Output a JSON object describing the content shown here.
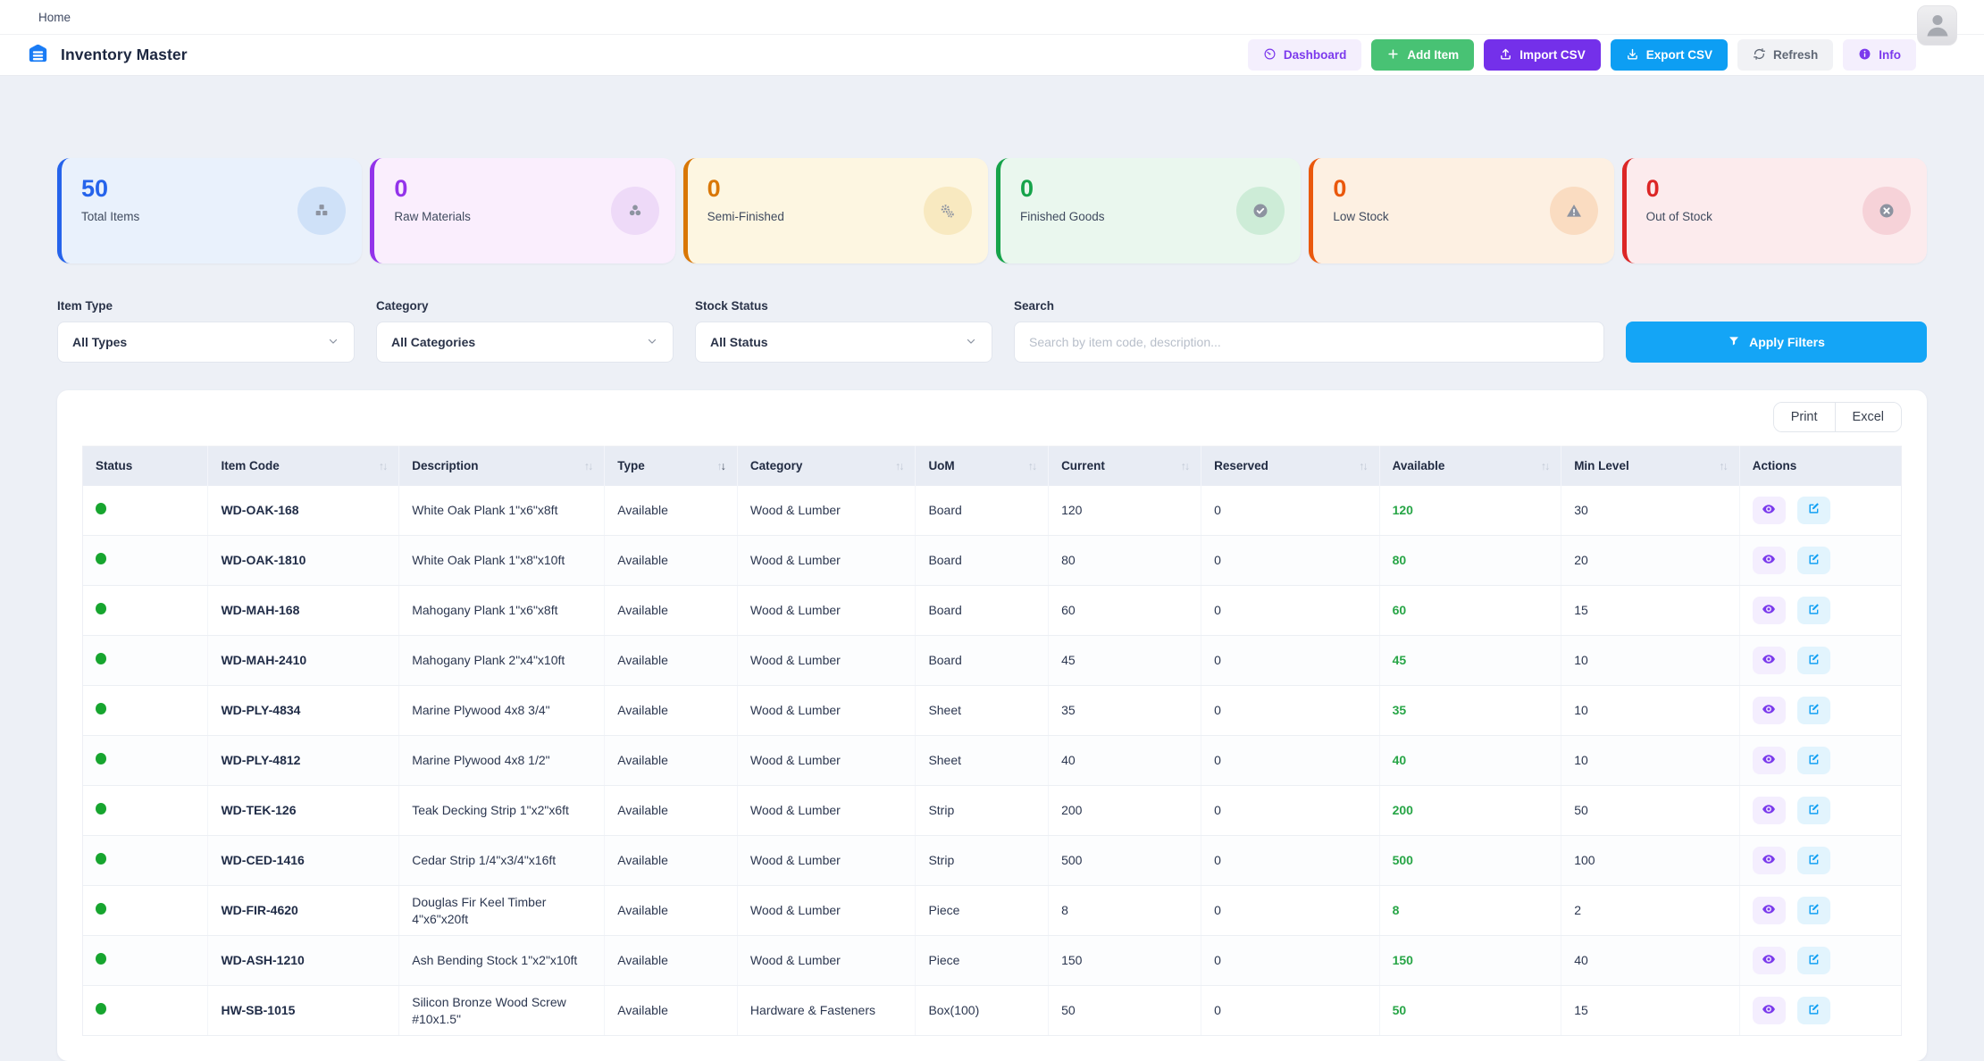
{
  "topbar": {
    "breadcrumb": "Home"
  },
  "header": {
    "title": "Inventory Master",
    "buttons": [
      {
        "label": "Dashboard",
        "icon": "dashboard-icon",
        "bg": "#f4effd",
        "fg": "#7c3aed"
      },
      {
        "label": "Add Item",
        "icon": "plus-icon",
        "bg": "#48c274",
        "fg": "#ffffff"
      },
      {
        "label": "Import CSV",
        "icon": "upload-icon",
        "bg": "#7430ea",
        "fg": "#ffffff"
      },
      {
        "label": "Export CSV",
        "icon": "download-icon",
        "bg": "#0d9ef3",
        "fg": "#ffffff"
      },
      {
        "label": "Refresh",
        "icon": "refresh-icon",
        "bg": "#f1f2f5",
        "fg": "#5f6775"
      },
      {
        "label": "Info",
        "icon": "info-icon",
        "bg": "#f4effd",
        "fg": "#7c3aed"
      }
    ]
  },
  "stats": [
    {
      "value": "50",
      "label": "Total Items",
      "icon": "boxes-icon",
      "accent": "#2563eb",
      "bg": "#e9f1fc",
      "icon_bg": "#cfe1f8"
    },
    {
      "value": "0",
      "label": "Raw Materials",
      "icon": "cubes-icon",
      "accent": "#9333ea",
      "bg": "#faeefd",
      "icon_bg": "#eedaf8"
    },
    {
      "value": "0",
      "label": "Semi-Finished",
      "icon": "gears-icon",
      "accent": "#d97706",
      "bg": "#fdf6e1",
      "icon_bg": "#f8e9c0"
    },
    {
      "value": "0",
      "label": "Finished Goods",
      "icon": "check-icon",
      "accent": "#16a34a",
      "bg": "#eaf7ee",
      "icon_bg": "#cdecd7"
    },
    {
      "value": "0",
      "label": "Low Stock",
      "icon": "warning-icon",
      "accent": "#ea580c",
      "bg": "#fdf0e2",
      "icon_bg": "#fadcc1"
    },
    {
      "value": "0",
      "label": "Out of Stock",
      "icon": "x-circle-icon",
      "accent": "#dc2626",
      "bg": "#fcebed",
      "icon_bg": "#f6d2d8"
    }
  ],
  "filters": {
    "item_type": {
      "label": "Item Type",
      "value": "All Types"
    },
    "category": {
      "label": "Category",
      "value": "All Categories"
    },
    "stock_status": {
      "label": "Stock Status",
      "value": "All Status"
    },
    "search": {
      "label": "Search",
      "placeholder": "Search by item code, description..."
    },
    "apply_label": "Apply Filters"
  },
  "table": {
    "export_buttons": [
      "Print",
      "Excel"
    ],
    "columns": [
      {
        "label": "Status",
        "sortable": false
      },
      {
        "label": "Item Code",
        "sortable": true
      },
      {
        "label": "Description",
        "sortable": true
      },
      {
        "label": "Type",
        "sortable": true,
        "sort": "desc"
      },
      {
        "label": "Category",
        "sortable": true
      },
      {
        "label": "UoM",
        "sortable": true
      },
      {
        "label": "Current",
        "sortable": true
      },
      {
        "label": "Reserved",
        "sortable": true
      },
      {
        "label": "Available",
        "sortable": true
      },
      {
        "label": "Min Level",
        "sortable": true
      },
      {
        "label": "Actions",
        "sortable": false
      }
    ],
    "row_actions": [
      "view",
      "edit"
    ],
    "rows": [
      {
        "status": "ok",
        "code": "WD-OAK-168",
        "description": "White Oak Plank 1\"x6\"x8ft",
        "type": "Available",
        "category": "Wood & Lumber",
        "uom": "Board",
        "current": "120",
        "reserved": "0",
        "available": "120",
        "min_level": "30"
      },
      {
        "status": "ok",
        "code": "WD-OAK-1810",
        "description": "White Oak Plank 1\"x8\"x10ft",
        "type": "Available",
        "category": "Wood & Lumber",
        "uom": "Board",
        "current": "80",
        "reserved": "0",
        "available": "80",
        "min_level": "20"
      },
      {
        "status": "ok",
        "code": "WD-MAH-168",
        "description": "Mahogany Plank 1\"x6\"x8ft",
        "type": "Available",
        "category": "Wood & Lumber",
        "uom": "Board",
        "current": "60",
        "reserved": "0",
        "available": "60",
        "min_level": "15"
      },
      {
        "status": "ok",
        "code": "WD-MAH-2410",
        "description": "Mahogany Plank 2\"x4\"x10ft",
        "type": "Available",
        "category": "Wood & Lumber",
        "uom": "Board",
        "current": "45",
        "reserved": "0",
        "available": "45",
        "min_level": "10"
      },
      {
        "status": "ok",
        "code": "WD-PLY-4834",
        "description": "Marine Plywood 4x8 3/4\"",
        "type": "Available",
        "category": "Wood & Lumber",
        "uom": "Sheet",
        "current": "35",
        "reserved": "0",
        "available": "35",
        "min_level": "10"
      },
      {
        "status": "ok",
        "code": "WD-PLY-4812",
        "description": "Marine Plywood 4x8 1/2\"",
        "type": "Available",
        "category": "Wood & Lumber",
        "uom": "Sheet",
        "current": "40",
        "reserved": "0",
        "available": "40",
        "min_level": "10"
      },
      {
        "status": "ok",
        "code": "WD-TEK-126",
        "description": "Teak Decking Strip 1\"x2\"x6ft",
        "type": "Available",
        "category": "Wood & Lumber",
        "uom": "Strip",
        "current": "200",
        "reserved": "0",
        "available": "200",
        "min_level": "50"
      },
      {
        "status": "ok",
        "code": "WD-CED-1416",
        "description": "Cedar Strip 1/4\"x3/4\"x16ft",
        "type": "Available",
        "category": "Wood & Lumber",
        "uom": "Strip",
        "current": "500",
        "reserved": "0",
        "available": "500",
        "min_level": "100"
      },
      {
        "status": "ok",
        "code": "WD-FIR-4620",
        "description": "Douglas Fir Keel Timber 4\"x6\"x20ft",
        "type": "Available",
        "category": "Wood & Lumber",
        "uom": "Piece",
        "current": "8",
        "reserved": "0",
        "available": "8",
        "min_level": "2"
      },
      {
        "status": "ok",
        "code": "WD-ASH-1210",
        "description": "Ash Bending Stock 1\"x2\"x10ft",
        "type": "Available",
        "category": "Wood & Lumber",
        "uom": "Piece",
        "current": "150",
        "reserved": "0",
        "available": "150",
        "min_level": "40"
      },
      {
        "status": "ok",
        "code": "HW-SB-1015",
        "description": "Silicon Bronze Wood Screw #10x1.5\"",
        "type": "Available",
        "category": "Hardware & Fasteners",
        "uom": "Box(100)",
        "current": "50",
        "reserved": "0",
        "available": "50",
        "min_level": "15"
      }
    ]
  }
}
